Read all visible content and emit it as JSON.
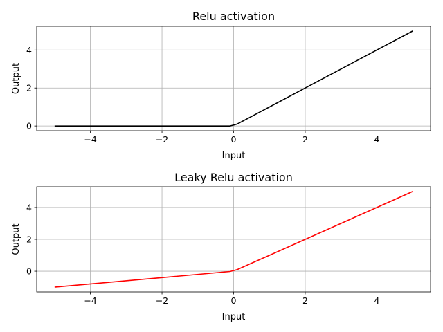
{
  "chart_data": [
    {
      "type": "line",
      "title": "Relu activation",
      "xlabel": "Input",
      "ylabel": "Output",
      "xlim": [
        -5.5,
        5.5
      ],
      "ylim": [
        -0.25,
        5.25
      ],
      "xticks": [
        -4,
        -2,
        0,
        2,
        4
      ],
      "xtick_labels": [
        "−4",
        "−2",
        "0",
        "2",
        "4"
      ],
      "yticks": [
        0,
        2,
        4
      ],
      "ytick_labels": [
        "0",
        "2",
        "4"
      ],
      "grid": true,
      "series": [
        {
          "color": "#000000",
          "x": [
            -5,
            -0.1,
            0.1,
            5
          ],
          "y": [
            0,
            0,
            0.1,
            5
          ]
        }
      ]
    },
    {
      "type": "line",
      "title": "Leaky Relu activation",
      "xlabel": "Input",
      "ylabel": "Output",
      "xlim": [
        -5.5,
        5.5
      ],
      "ylim": [
        -1.3,
        5.3
      ],
      "xticks": [
        -4,
        -2,
        0,
        2,
        4
      ],
      "xtick_labels": [
        "−4",
        "−2",
        "0",
        "2",
        "4"
      ],
      "yticks": [
        0,
        2,
        4
      ],
      "ytick_labels": [
        "0",
        "2",
        "4"
      ],
      "grid": true,
      "series": [
        {
          "color": "#ff0000",
          "x": [
            -5,
            -0.1,
            0.1,
            5
          ],
          "y": [
            -1,
            -0.02,
            0.1,
            5
          ]
        }
      ]
    }
  ]
}
